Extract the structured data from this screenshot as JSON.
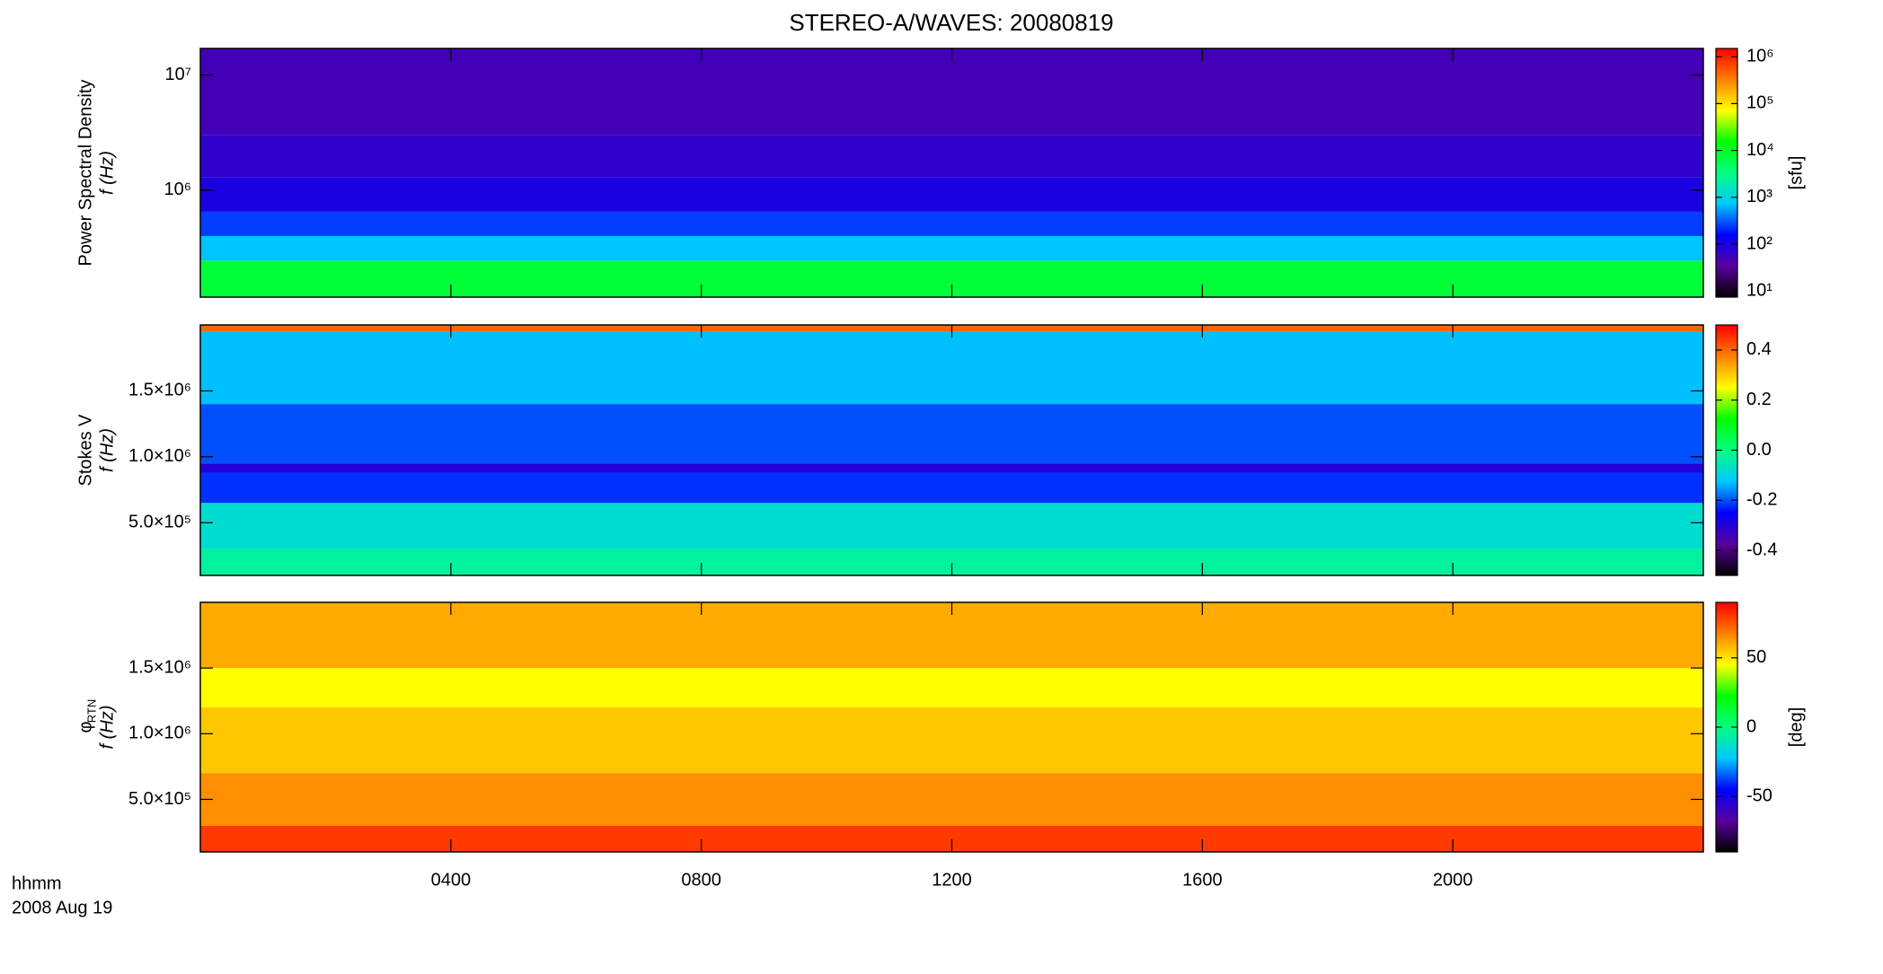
{
  "chart_data": [
    {
      "type": "spectrogram",
      "title": "STEREO-A/WAVES: 20080819",
      "ylabel": "Power Spectral Density",
      "ylabel2": "f (Hz)",
      "xlim": [
        0,
        24
      ],
      "xticks": [
        4,
        8,
        12,
        16,
        20
      ],
      "ylog": true,
      "ylim": [
        118000,
        17000000
      ],
      "yticks": [
        {
          "value": 1000000,
          "label": "10⁶"
        },
        {
          "value": 10000000,
          "label": "10⁷"
        }
      ],
      "band_edges": [
        118000,
        245000,
        400000,
        650000,
        1300000,
        3000000,
        17000000
      ],
      "values": [
        8000,
        700,
        250,
        100,
        70,
        50
      ],
      "clog": true,
      "clim": [
        7.4,
        1500000
      ],
      "cticks": [
        {
          "value": 10,
          "label": "10¹"
        },
        {
          "value": 100,
          "label": "10²"
        },
        {
          "value": 1000,
          "label": "10³"
        },
        {
          "value": 10000,
          "label": "10⁴"
        },
        {
          "value": 100000,
          "label": "10⁵"
        },
        {
          "value": 1000000,
          "label": "10⁶"
        }
      ],
      "clabel": "[sfu]",
      "colormap": [
        "#000000",
        "#5a009e",
        "#0000ff",
        "#00c8ff",
        "#00ff80",
        "#00ff00",
        "#ffff00",
        "#ff8000",
        "#ff0000"
      ]
    },
    {
      "type": "spectrogram",
      "ylabel": "Stokes V",
      "ylabel2": "f (Hz)",
      "xlim": [
        0,
        24
      ],
      "xticks": [
        4,
        8,
        12,
        16,
        20
      ],
      "ylog": false,
      "ylim": [
        100000,
        2000000
      ],
      "yticks": [
        {
          "value": 500000,
          "label": "5.0×10⁵"
        },
        {
          "value": 1000000,
          "label": "1.0×10⁶"
        },
        {
          "value": 1500000,
          "label": "1.5×10⁶"
        }
      ],
      "band_edges": [
        100000,
        300000,
        650000,
        880000,
        950000,
        1400000,
        1950000,
        2000000
      ],
      "values": [
        -0.03,
        -0.08,
        -0.22,
        -0.3,
        -0.2,
        -0.13,
        0.4
      ],
      "clog": false,
      "clim": [
        -0.5,
        0.5
      ],
      "cticks": [
        {
          "value": -0.4,
          "label": "-0.4"
        },
        {
          "value": -0.2,
          "label": "-0.2"
        },
        {
          "value": 0,
          "label": "0.0"
        },
        {
          "value": 0.2,
          "label": "0.2"
        },
        {
          "value": 0.4,
          "label": "0.4"
        }
      ],
      "colormap": [
        "#000000",
        "#5a009e",
        "#0000ff",
        "#00c8ff",
        "#00ff80",
        "#00ff00",
        "#ffff00",
        "#ff8000",
        "#ff0000"
      ]
    },
    {
      "type": "spectrogram",
      "ylabel": "φ",
      "ylabel_sub": "RTN",
      "ylabel2": "f (Hz)",
      "xlabel": "hhmm",
      "date": "2008 Aug 19",
      "xlim": [
        0,
        24
      ],
      "xticks": [
        {
          "value": 4,
          "label": "0400"
        },
        {
          "value": 8,
          "label": "0800"
        },
        {
          "value": 12,
          "label": "1200"
        },
        {
          "value": 16,
          "label": "1600"
        },
        {
          "value": 20,
          "label": "2000"
        }
      ],
      "ylog": false,
      "ylim": [
        100000,
        2000000
      ],
      "yticks": [
        {
          "value": 500000,
          "label": "5.0×10⁵"
        },
        {
          "value": 1000000,
          "label": "1.0×10⁶"
        },
        {
          "value": 1500000,
          "label": "1.5×10⁶"
        }
      ],
      "band_edges": [
        100000,
        300000,
        700000,
        1200000,
        1500000,
        2000000
      ],
      "values": [
        80,
        65,
        55,
        45,
        60
      ],
      "clog": false,
      "clim": [
        -90,
        90
      ],
      "cticks": [
        -50,
        0,
        50
      ],
      "clabel": "[deg]",
      "colormap": [
        "#000000",
        "#5a009e",
        "#0000ff",
        "#00c8ff",
        "#00ff80",
        "#00ff00",
        "#ffff00",
        "#ff8000",
        "#ff0000"
      ]
    }
  ]
}
